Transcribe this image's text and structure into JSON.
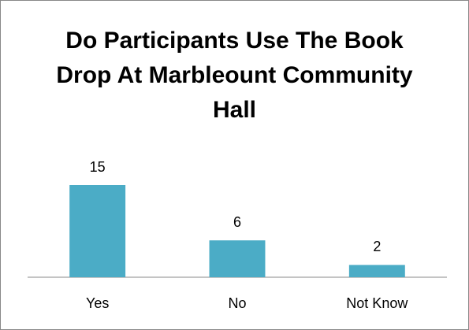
{
  "chart_data": {
    "type": "bar",
    "title": "Do Participants Use The Book Drop At Marbleount Community Hall",
    "categories": [
      "Yes",
      "No",
      "Not Know"
    ],
    "values": [
      15,
      6,
      2
    ],
    "color": "#4bacc6"
  }
}
